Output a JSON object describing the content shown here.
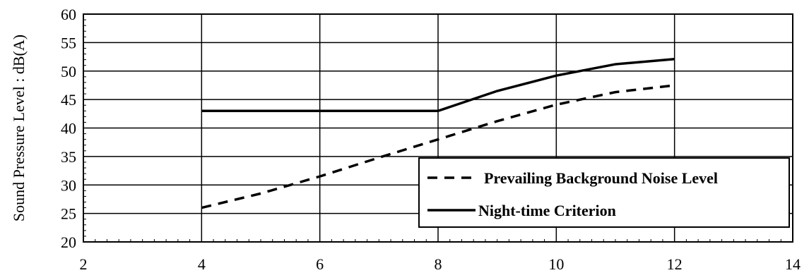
{
  "chart_data": {
    "type": "line",
    "title": "",
    "xlabel": "",
    "ylabel": "Sound Pressure Level : dB(A)",
    "xlim": [
      2,
      14
    ],
    "ylim": [
      20,
      60
    ],
    "xticks": [
      2,
      4,
      6,
      8,
      10,
      12,
      14
    ],
    "yticks": [
      20,
      25,
      30,
      35,
      40,
      45,
      50,
      55,
      60
    ],
    "grid": true,
    "legend_position": "bottom-right",
    "series": [
      {
        "name": "Prevailing Background Noise Level",
        "style": "dashed",
        "color": "#000000",
        "x": [
          4,
          5,
          6,
          7,
          8,
          9,
          10,
          11,
          12
        ],
        "y": [
          26,
          28.5,
          31.5,
          34.8,
          38,
          41.2,
          44.1,
          46.3,
          47.5
        ]
      },
      {
        "name": "Night-time Criterion",
        "style": "solid",
        "color": "#000000",
        "x": [
          4,
          5,
          6,
          7,
          8,
          9,
          10,
          11,
          12
        ],
        "y": [
          43,
          43,
          43,
          43,
          43,
          46.5,
          49.2,
          51.2,
          52.1
        ]
      }
    ]
  }
}
